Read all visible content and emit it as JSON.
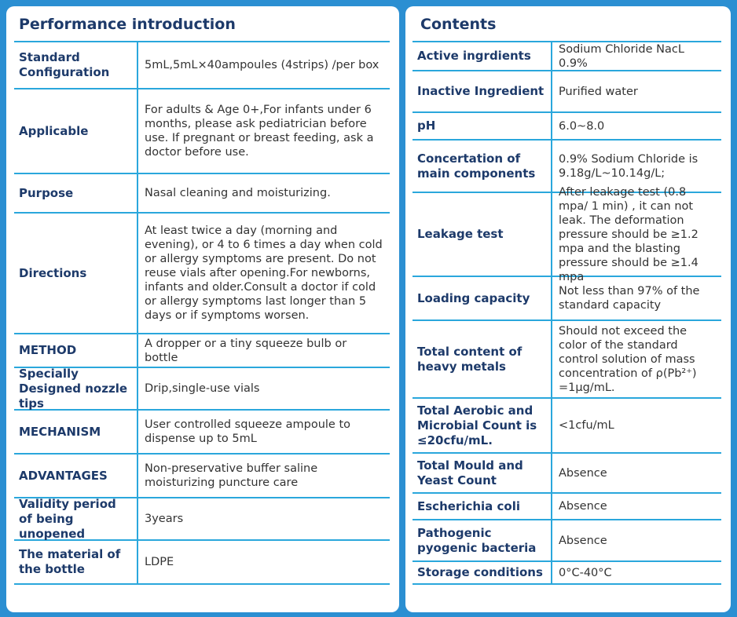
{
  "left": {
    "title": "Performance introduction",
    "rows": [
      [
        "Standard Configuration",
        "5mL,5mL×40ampoules (4strips) /per box"
      ],
      [
        "Applicable",
        "For adults & Age 0+,For infants under 6 months, please ask pediatrician before use. If pregnant or breast feeding, ask a doctor before use."
      ],
      [
        "Purpose",
        "Nasal cleaning and moisturizing."
      ],
      [
        "Directions",
        "At least twice a day (morning and evening), or 4 to 6 times a day when cold or allergy symptoms are present. Do not reuse vials after opening.For newborns, infants and older.Consult a doctor if cold or allergy symptoms last longer than 5 days or if symptoms worsen."
      ],
      [
        "METHOD",
        "A dropper or a tiny squeeze bulb or bottle"
      ],
      [
        "Specially Designed nozzle tips",
        "Drip,single-use vials"
      ],
      [
        "MECHANISM",
        "User controlled squeeze ampoule to dispense up to 5mL"
      ],
      [
        "ADVANTAGES",
        "Non-preservative buffer saline moisturizing puncture care"
      ],
      [
        "Validity period of being unopened",
        "3years"
      ],
      [
        "The material of the bottle",
        "LDPE"
      ]
    ]
  },
  "right": {
    "title": "Contents",
    "rows": [
      [
        "Active ingrdients",
        "Sodium Chloride NacL 0.9%"
      ],
      [
        "Inactive Ingredient",
        "Purified water"
      ],
      [
        "pH",
        "6.0~8.0"
      ],
      [
        "Concertation of main components",
        "0.9% Sodium Chloride is 9.18g/L~10.14g/L;"
      ],
      [
        "Leakage test",
        "After leakage test (0.8 mpa/ 1 min) , it can not leak. The deformation pressure should be ≥1.2 mpa and the blasting pressure should be ≥1.4 mpa"
      ],
      [
        "Loading capacity",
        "Not less than 97% of the standard capacity"
      ],
      [
        "Total content of heavy metals",
        "Should not exceed the color of the standard control solution of mass concentration of ρ(Pb²⁺) =1μg/mL."
      ],
      [
        "Total Aerobic and Microbial Count is ≤20cfu/mL.",
        "<1cfu/mL"
      ],
      [
        "Total Mould and Yeast Count",
        "Absence"
      ],
      [
        "Escherichia coli",
        "Absence"
      ],
      [
        "Pathogenic pyogenic bacteria",
        "Absence"
      ],
      [
        "Storage conditions",
        "0°C-40°C"
      ]
    ]
  }
}
